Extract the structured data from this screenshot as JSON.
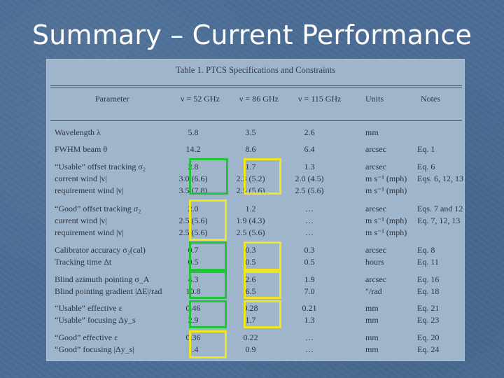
{
  "slide": {
    "title": "Summary – Current Performance"
  },
  "table": {
    "caption": "Table 1.   PTCS Specifications and Constraints",
    "headers": [
      "Parameter",
      "ν = 52 GHz",
      "ν = 86 GHz",
      "ν = 115 GHz",
      "Units",
      "Notes"
    ],
    "rows": [
      [
        "Wavelength λ",
        "5.8",
        "3.5",
        "2.6",
        "mm",
        ""
      ],
      [
        "FWHM beam θ",
        "14.2",
        "8.6",
        "6.4",
        "arcsec",
        "Eq. 1"
      ],
      [
        "“Usable” offset tracking σ₂",
        "2.8",
        "1.7",
        "1.3",
        "arcsec",
        "Eq. 6"
      ],
      [
        "current wind |v|",
        "3.0 (6.6)",
        "2.3 (5.2)",
        "2.0 (4.5)",
        "m s⁻¹ (mph)",
        "Eqs. 6, 12, 13"
      ],
      [
        "requirement wind |v|",
        "3.5 (7.8)",
        "2.5 (5.6)",
        "2.5 (5.6)",
        "m s⁻¹ (mph)",
        ""
      ],
      [
        "“Good” offset tracking σ₂",
        "2.0",
        "1.2",
        "…",
        "arcsec",
        "Eqs. 7 and 12"
      ],
      [
        "current wind |v|",
        "2.5 (5.6)",
        "1.9 (4.3)",
        "…",
        "m s⁻¹ (mph)",
        "Eq. 7, 12, 13"
      ],
      [
        "requirement wind |v|",
        "2.5 (5.6)",
        "2.5 (5.6)",
        "…",
        "m s⁻¹ (mph)",
        ""
      ],
      [
        "Calibrator accuracy σ₂(cal)",
        "0.7",
        "0.3",
        "0.3",
        "arcsec",
        "Eq. 8"
      ],
      [
        "Tracking time Δt",
        "0.5",
        "0.5",
        "0.5",
        "hours",
        "Eq. 11"
      ],
      [
        "Blind azimuth pointing σ_A",
        "4.3",
        "2.6",
        "1.9",
        "arcsec",
        "Eq. 16"
      ],
      [
        "Blind pointing gradient |ΔE|/rad",
        "10.8",
        "6.5",
        "7.0",
        "″/rad",
        "Eq. 18"
      ],
      [
        "“Usable” effective ε",
        "0.46",
        "0.28",
        "0.21",
        "mm",
        "Eq. 21"
      ],
      [
        "“Usable” focusing Δy_s",
        "2.9",
        "1.7",
        "1.3",
        "mm",
        "Eq. 23"
      ],
      [
        "“Good” effective ε",
        "0.36",
        "0.22",
        "…",
        "mm",
        "Eq. 20"
      ],
      [
        "“Good” focusing |Δy_s|",
        "1.4",
        "0.9",
        "…",
        "mm",
        "Eq. 24"
      ]
    ]
  },
  "highlights": {
    "green_color": "#22c43a",
    "yellow_color": "#f0e620"
  }
}
